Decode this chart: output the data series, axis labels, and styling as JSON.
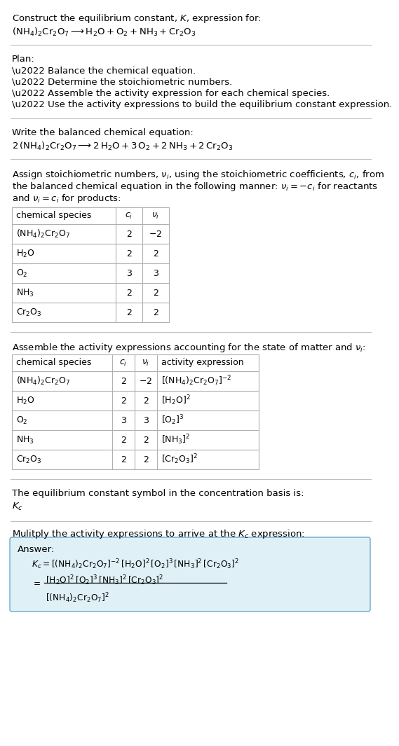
{
  "bg_color": "#ffffff",
  "text_color": "#000000",
  "title_line1": "Construct the equilibrium constant, $K$, expression for:",
  "title_line2": "$(\\mathrm{NH_4})_2\\mathrm{Cr_2O_7} \\longrightarrow \\mathrm{H_2O} + \\mathrm{O_2} + \\mathrm{NH_3} + \\mathrm{Cr_2O_3}$",
  "plan_header": "Plan:",
  "plan_items": [
    "\\u2022 Balance the chemical equation.",
    "\\u2022 Determine the stoichiometric numbers.",
    "\\u2022 Assemble the activity expression for each chemical species.",
    "\\u2022 Use the activity expressions to build the equilibrium constant expression."
  ],
  "balanced_header": "Write the balanced chemical equation:",
  "balanced_eq": "$2\\,(\\mathrm{NH_4})_2\\mathrm{Cr_2O_7} \\longrightarrow 2\\,\\mathrm{H_2O} + 3\\,\\mathrm{O_2} + 2\\,\\mathrm{NH_3} + 2\\,\\mathrm{Cr_2O_3}$",
  "stoich_lines": [
    "Assign stoichiometric numbers, $\\nu_i$, using the stoichiometric coefficients, $c_i$, from",
    "the balanced chemical equation in the following manner: $\\nu_i = -c_i$ for reactants",
    "and $\\nu_i = c_i$ for products:"
  ],
  "table1_headers": [
    "chemical species",
    "$c_i$",
    "$\\nu_i$"
  ],
  "table1_rows": [
    [
      "$(\\mathrm{NH_4})_2\\mathrm{Cr_2O_7}$",
      "2",
      "$-2$"
    ],
    [
      "$\\mathrm{H_2O}$",
      "2",
      "2"
    ],
    [
      "$\\mathrm{O_2}$",
      "3",
      "3"
    ],
    [
      "$\\mathrm{NH_3}$",
      "2",
      "2"
    ],
    [
      "$\\mathrm{Cr_2O_3}$",
      "2",
      "2"
    ]
  ],
  "activity_header": "Assemble the activity expressions accounting for the state of matter and $\\nu_i$:",
  "table2_headers": [
    "chemical species",
    "$c_i$",
    "$\\nu_i$",
    "activity expression"
  ],
  "table2_rows": [
    [
      "$(\\mathrm{NH_4})_2\\mathrm{Cr_2O_7}$",
      "2",
      "$-2$",
      "$[(\\mathrm{NH_4})_2\\mathrm{Cr_2O_7}]^{-2}$"
    ],
    [
      "$\\mathrm{H_2O}$",
      "2",
      "2",
      "$[\\mathrm{H_2O}]^2$"
    ],
    [
      "$\\mathrm{O_2}$",
      "3",
      "3",
      "$[\\mathrm{O_2}]^3$"
    ],
    [
      "$\\mathrm{NH_3}$",
      "2",
      "2",
      "$[\\mathrm{NH_3}]^2$"
    ],
    [
      "$\\mathrm{Cr_2O_3}$",
      "2",
      "2",
      "$[\\mathrm{Cr_2O_3}]^2$"
    ]
  ],
  "kc_header": "The equilibrium constant symbol in the concentration basis is:",
  "kc_symbol": "$K_c$",
  "multiply_header": "Mulitply the activity expressions to arrive at the $K_c$ expression:",
  "answer_label": "Answer:",
  "answer_line1": "$K_c = [(\\mathrm{NH_4})_2\\mathrm{Cr_2O_7}]^{-2}\\,[\\mathrm{H_2O}]^2\\,[\\mathrm{O_2}]^3\\,[\\mathrm{NH_3}]^2\\,[\\mathrm{Cr_2O_3}]^2$",
  "answer_eq_sign": "$= $",
  "answer_num": "$[\\mathrm{H_2O}]^2\\,[\\mathrm{O_2}]^3\\,[\\mathrm{NH_3}]^2\\,[\\mathrm{Cr_2O_3}]^2$",
  "answer_den": "$[(\\mathrm{NH_4})_2\\mathrm{Cr_2O_7}]^2$",
  "font_size": 9.5,
  "font_size_table": 9.0,
  "font_size_answer": 8.8,
  "answer_box_color": "#dff0f7",
  "answer_box_edge": "#6aaac8",
  "grid_color": "#b0b0b0",
  "hline_color": "#c0c0c0"
}
